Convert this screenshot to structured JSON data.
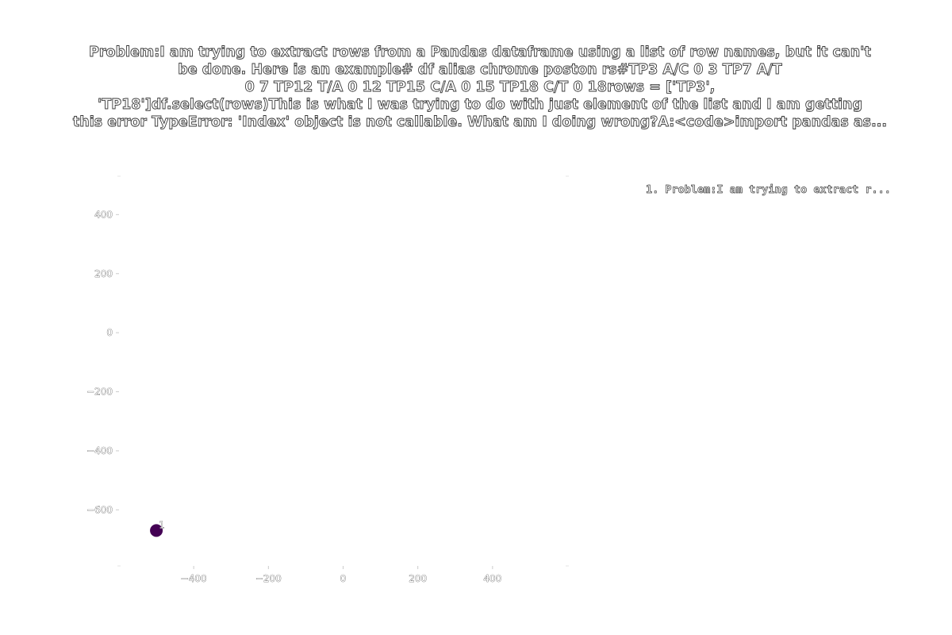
{
  "title_lines": [
    "Problem:I am trying to extract rows from a Pandas dataframe using a list of row names, but it can't",
    "be done. Here is an example# df    alias  chrome  poston rs#TP3       A/C      0    3    TP7       A/T",
    "0    7    TP12      T/A      0    12  TP15      C/A      0    15  TP18      C/T      0    18rows = ['TP3',",
    "'TP18']df.select(rows)This is what I was trying to do with just element of the list and I am getting",
    "this error TypeError: 'Index' object is not callable. What am I doing wrong?A:<code>import pandas as..."
  ],
  "legend_text": "1. Problem:I am trying to extract r...",
  "colors": {
    "point": "#440154",
    "text_fill": "#ffffff",
    "text_outline": "#333333"
  },
  "chart_data": {
    "type": "scatter",
    "xlim": [
      -600,
      600
    ],
    "ylim": [
      -790,
      530
    ],
    "x_ticks": [
      -400,
      -200,
      0,
      200,
      400
    ],
    "x_tick_labels": [
      "−400",
      "−200",
      "0",
      "200",
      "400"
    ],
    "y_ticks": [
      400,
      200,
      0,
      -200,
      -400,
      -600
    ],
    "y_tick_labels": [
      "400",
      "200",
      "0",
      "−200",
      "−400",
      "−600"
    ],
    "grid": false,
    "legend_position": "top-right",
    "points": [
      {
        "label": "1",
        "x": -500,
        "y": -670
      }
    ]
  }
}
